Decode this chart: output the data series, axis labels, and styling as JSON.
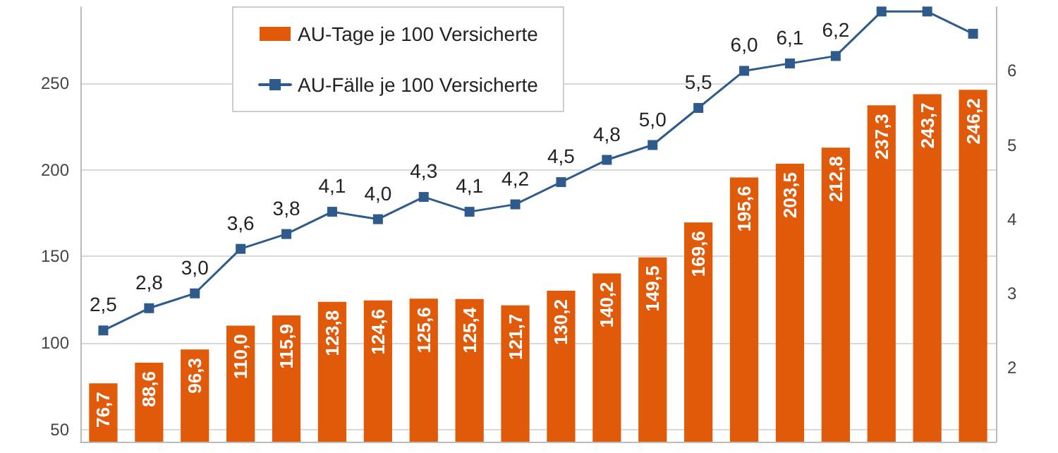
{
  "chart_data": {
    "type": "bar",
    "categories": [
      null,
      null,
      null,
      null,
      null,
      null,
      null,
      null,
      null,
      null,
      null,
      null,
      null,
      null,
      null,
      null,
      null,
      null,
      null,
      null
    ],
    "series": [
      {
        "name": "AU-Tage je 100 Versicherte",
        "type": "bar",
        "color": "#e05a0a",
        "values": [
          76.7,
          88.6,
          96.3,
          110.0,
          115.9,
          123.8,
          124.6,
          125.6,
          125.4,
          121.7,
          130.2,
          140.2,
          149.5,
          169.6,
          195.6,
          203.5,
          212.8,
          237.3,
          243.7,
          246.2
        ],
        "value_labels": [
          "76,7",
          "88,6",
          "96,3",
          "110,0",
          "115,9",
          "123,8",
          "124,6",
          "125,6",
          "125,4",
          "121,7",
          "130,2",
          "140,2",
          "149,5",
          "169,6",
          "195,6",
          "203,5",
          "212,8",
          "237,3",
          "243,7",
          "246,2"
        ]
      },
      {
        "name": "AU-Fälle je 100 Versicherte",
        "type": "line",
        "axis": "y2",
        "color": "#2e5a8c",
        "values": [
          2.5,
          2.8,
          3.0,
          3.6,
          3.8,
          4.1,
          4.0,
          4.3,
          4.1,
          4.2,
          4.5,
          4.8,
          5.0,
          5.5,
          6.0,
          6.1,
          6.2,
          6.8,
          6.8,
          6.5
        ],
        "value_labels": [
          "2,5",
          "2,8",
          "3,0",
          "3,6",
          "3,8",
          "4,1",
          "4,0",
          "4,3",
          "4,1",
          "4,2",
          "4,5",
          "4,8",
          "5,0",
          "5,5",
          "6,0",
          "6,1",
          "6,2",
          null,
          null,
          null
        ]
      }
    ],
    "ylim": [
      43,
      294
    ],
    "yticks": [
      50,
      100,
      150,
      200,
      250
    ],
    "y2lim": [
      1.0,
      6.86
    ],
    "y2ticks": [
      2,
      3,
      4,
      5,
      6
    ],
    "grid": "y",
    "legend": "top left",
    "marker": "square"
  }
}
